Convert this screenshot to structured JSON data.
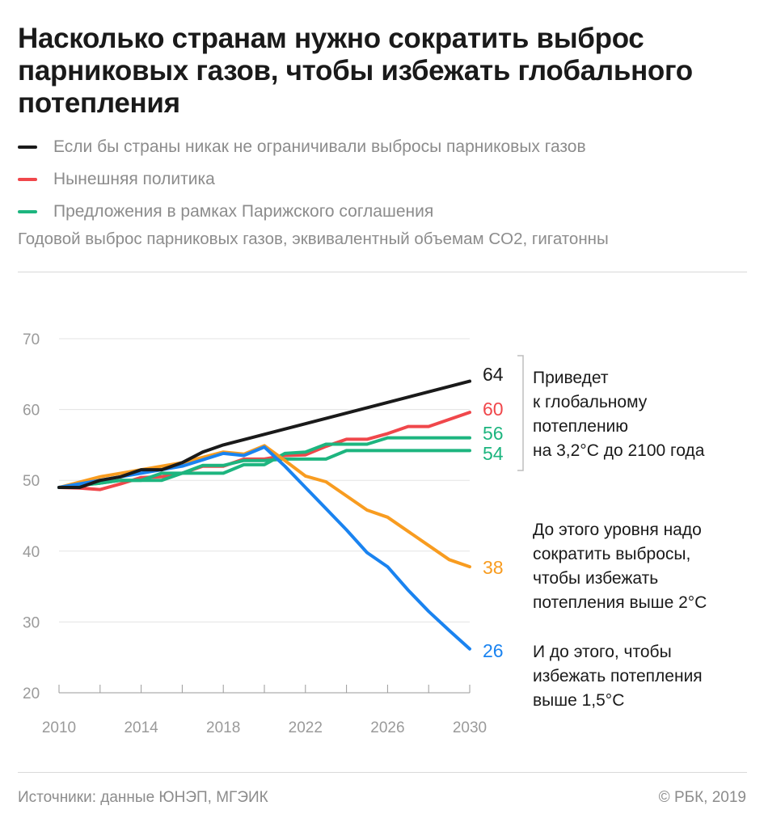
{
  "title": "Насколько странам нужно сократить выброс парниковых газов, чтобы избежать глобального потепления",
  "legend": [
    {
      "label": "Если бы страны никак не ограничивали выбросы парниковых газов",
      "color": "#1a1a1a"
    },
    {
      "label": "Нынешняя политика",
      "color": "#f0474b"
    },
    {
      "label": "Предложения в рамках Парижского соглашения",
      "color": "#1db57f"
    }
  ],
  "subtitle": "Годовой выброс парниковых газов, эквивалентный объемам CO2, гигатонны",
  "footer": {
    "source": "Источники: данные ЮНЭП, МГЭИК",
    "copyright": "© РБК, 2019"
  },
  "chart_data": {
    "type": "line",
    "ylim": [
      20,
      70
    ],
    "xlim": [
      2010,
      2030
    ],
    "yticks": [
      "20",
      "30",
      "40",
      "50",
      "60",
      "70"
    ],
    "xticks": [
      "2010",
      "2014",
      "2018",
      "2022",
      "2026",
      "2030"
    ],
    "series": [
      {
        "color": "#1a1a1a",
        "end_label": "64",
        "x": [
          2010,
          2011,
          2012,
          2013,
          2014,
          2015,
          2016,
          2017,
          2018,
          2030
        ],
        "y": [
          49,
          49,
          50,
          50.5,
          51.5,
          51.5,
          52.5,
          54,
          55,
          64
        ]
      },
      {
        "color": "#f0474b",
        "end_label": "60",
        "x": [
          2010,
          2011,
          2012,
          2013,
          2014,
          2015,
          2016,
          2017,
          2018,
          2019,
          2020,
          2021,
          2022,
          2023,
          2024,
          2025,
          2026,
          2027,
          2028,
          2029,
          2030
        ],
        "y": [
          49,
          48.9,
          48.7,
          49.5,
          50.4,
          50.5,
          51,
          52,
          52,
          53,
          53,
          53.5,
          53.6,
          54.8,
          55.8,
          55.8,
          56.6,
          57.6,
          57.6,
          58.6,
          59.6
        ]
      },
      {
        "color": "#1db57f",
        "end_label": "56",
        "x": [
          2010,
          2011,
          2012,
          2013,
          2014,
          2015,
          2016,
          2017,
          2018,
          2019,
          2020,
          2021,
          2022,
          2023,
          2024,
          2025,
          2026,
          2027,
          2028,
          2029,
          2030
        ],
        "y": [
          49,
          49.3,
          49.6,
          50,
          50,
          51,
          51,
          51,
          51,
          52.2,
          52.2,
          53.8,
          54,
          55.1,
          55.1,
          55.1,
          56,
          56,
          56,
          56,
          56
        ]
      },
      {
        "color": "#1db57f",
        "end_label": "54",
        "x": [
          2010,
          2011,
          2012,
          2013,
          2014,
          2015,
          2016,
          2017,
          2018,
          2019,
          2020,
          2021,
          2022,
          2023,
          2024,
          2025,
          2026,
          2027,
          2028,
          2029,
          2030
        ],
        "y": [
          49,
          49.3,
          49.6,
          50,
          50,
          50,
          51,
          52.1,
          52.1,
          52.8,
          52.8,
          53,
          53,
          53,
          54.2,
          54.2,
          54.2,
          54.2,
          54.2,
          54.2,
          54.2
        ]
      },
      {
        "color": "#f89c20",
        "end_label": "38",
        "x": [
          2010,
          2012,
          2014,
          2016,
          2018,
          2019,
          2020,
          2021,
          2022,
          2023,
          2024,
          2025,
          2026,
          2027,
          2028,
          2029,
          2030
        ],
        "y": [
          49,
          50.5,
          51.5,
          52.5,
          54,
          53.7,
          54.9,
          52.8,
          50.6,
          49.8,
          47.8,
          45.8,
          44.8,
          42.8,
          40.8,
          38.8,
          37.8
        ]
      },
      {
        "color": "#1a83f0",
        "end_label": "26",
        "x": [
          2010,
          2012,
          2014,
          2016,
          2018,
          2019,
          2020,
          2021,
          2022,
          2023,
          2024,
          2025,
          2026,
          2027,
          2028,
          2029,
          2030
        ],
        "y": [
          49,
          50,
          51,
          52,
          53.8,
          53.5,
          54.7,
          52,
          49,
          46,
          43,
          39.8,
          37.8,
          34.5,
          31.5,
          28.8,
          26.2
        ]
      }
    ],
    "annotations": [
      {
        "text": [
          "Приведет",
          "к глобальному",
          "потеплению",
          "на 3,2°C до 2100 года"
        ]
      },
      {
        "text": [
          "До этого уровня надо",
          "сократить выбросы,",
          "чтобы избежать",
          "потепления выше 2°C"
        ]
      },
      {
        "text": [
          "И до этого, чтобы",
          "избежать потепления",
          "выше 1,5°C"
        ]
      }
    ]
  }
}
